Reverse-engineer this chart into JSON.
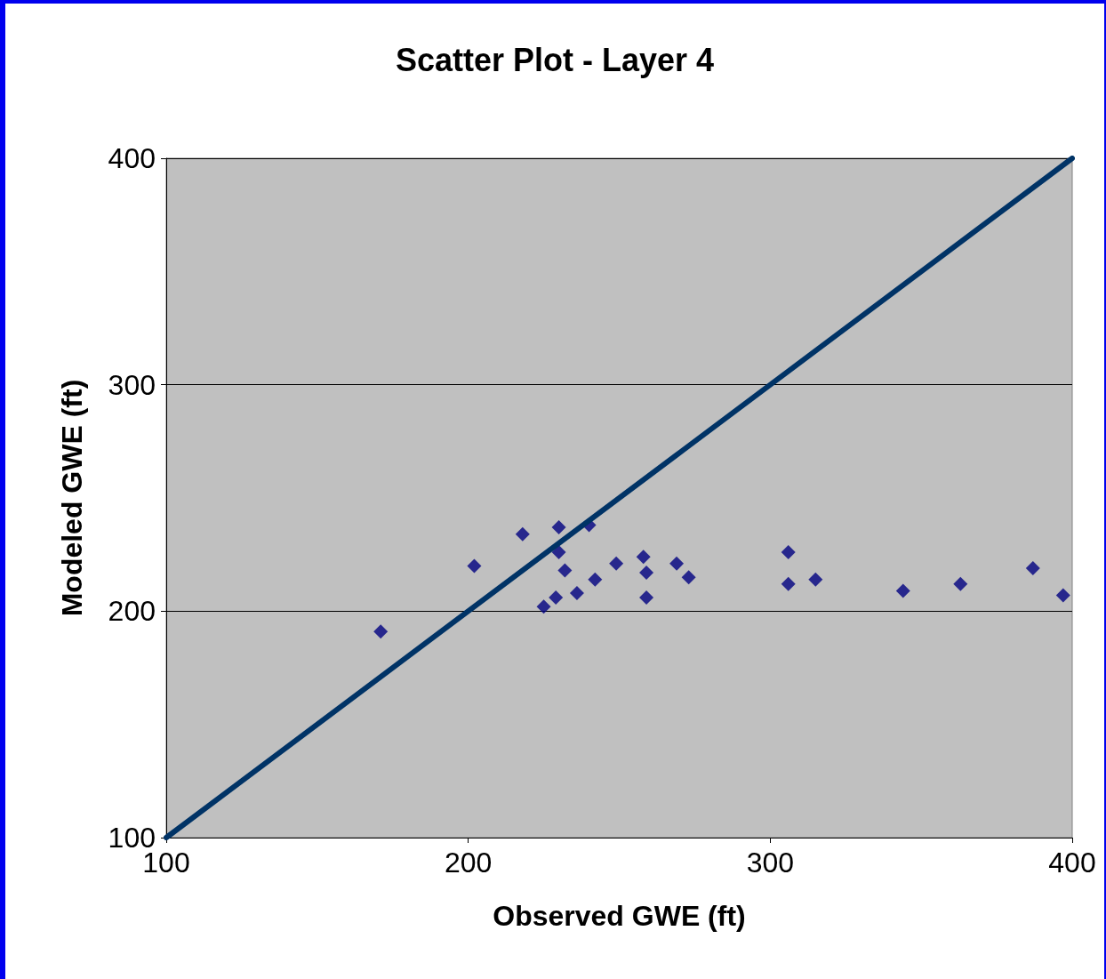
{
  "chart_data": {
    "type": "scatter",
    "title": "Scatter Plot - Layer 4",
    "xlabel": "Observed GWE (ft)",
    "ylabel": "Modeled GWE (ft)",
    "xlim": [
      100,
      400
    ],
    "xticks": [
      100,
      200,
      300,
      400
    ],
    "ylim": [
      100,
      400
    ],
    "yticks": [
      100,
      200,
      300,
      400
    ],
    "grid": "y",
    "series": [
      {
        "marker": "diamond",
        "color": "#000080",
        "x": [
          171,
          202,
          218,
          230,
          230,
          232,
          225,
          229,
          236,
          240,
          242,
          249,
          258,
          259,
          259,
          269,
          273,
          306,
          306,
          315,
          344,
          363,
          387,
          397
        ],
        "values": [
          191,
          220,
          234,
          237,
          226,
          218,
          202,
          206,
          208,
          238,
          214,
          221,
          224,
          217,
          206,
          221,
          215,
          226,
          212,
          214,
          209,
          212,
          219,
          207
        ]
      },
      {
        "type": "line",
        "marker": "none",
        "line_style": "solid",
        "color": "#003366",
        "x": [
          100,
          400
        ],
        "values": [
          100,
          400
        ]
      }
    ]
  }
}
